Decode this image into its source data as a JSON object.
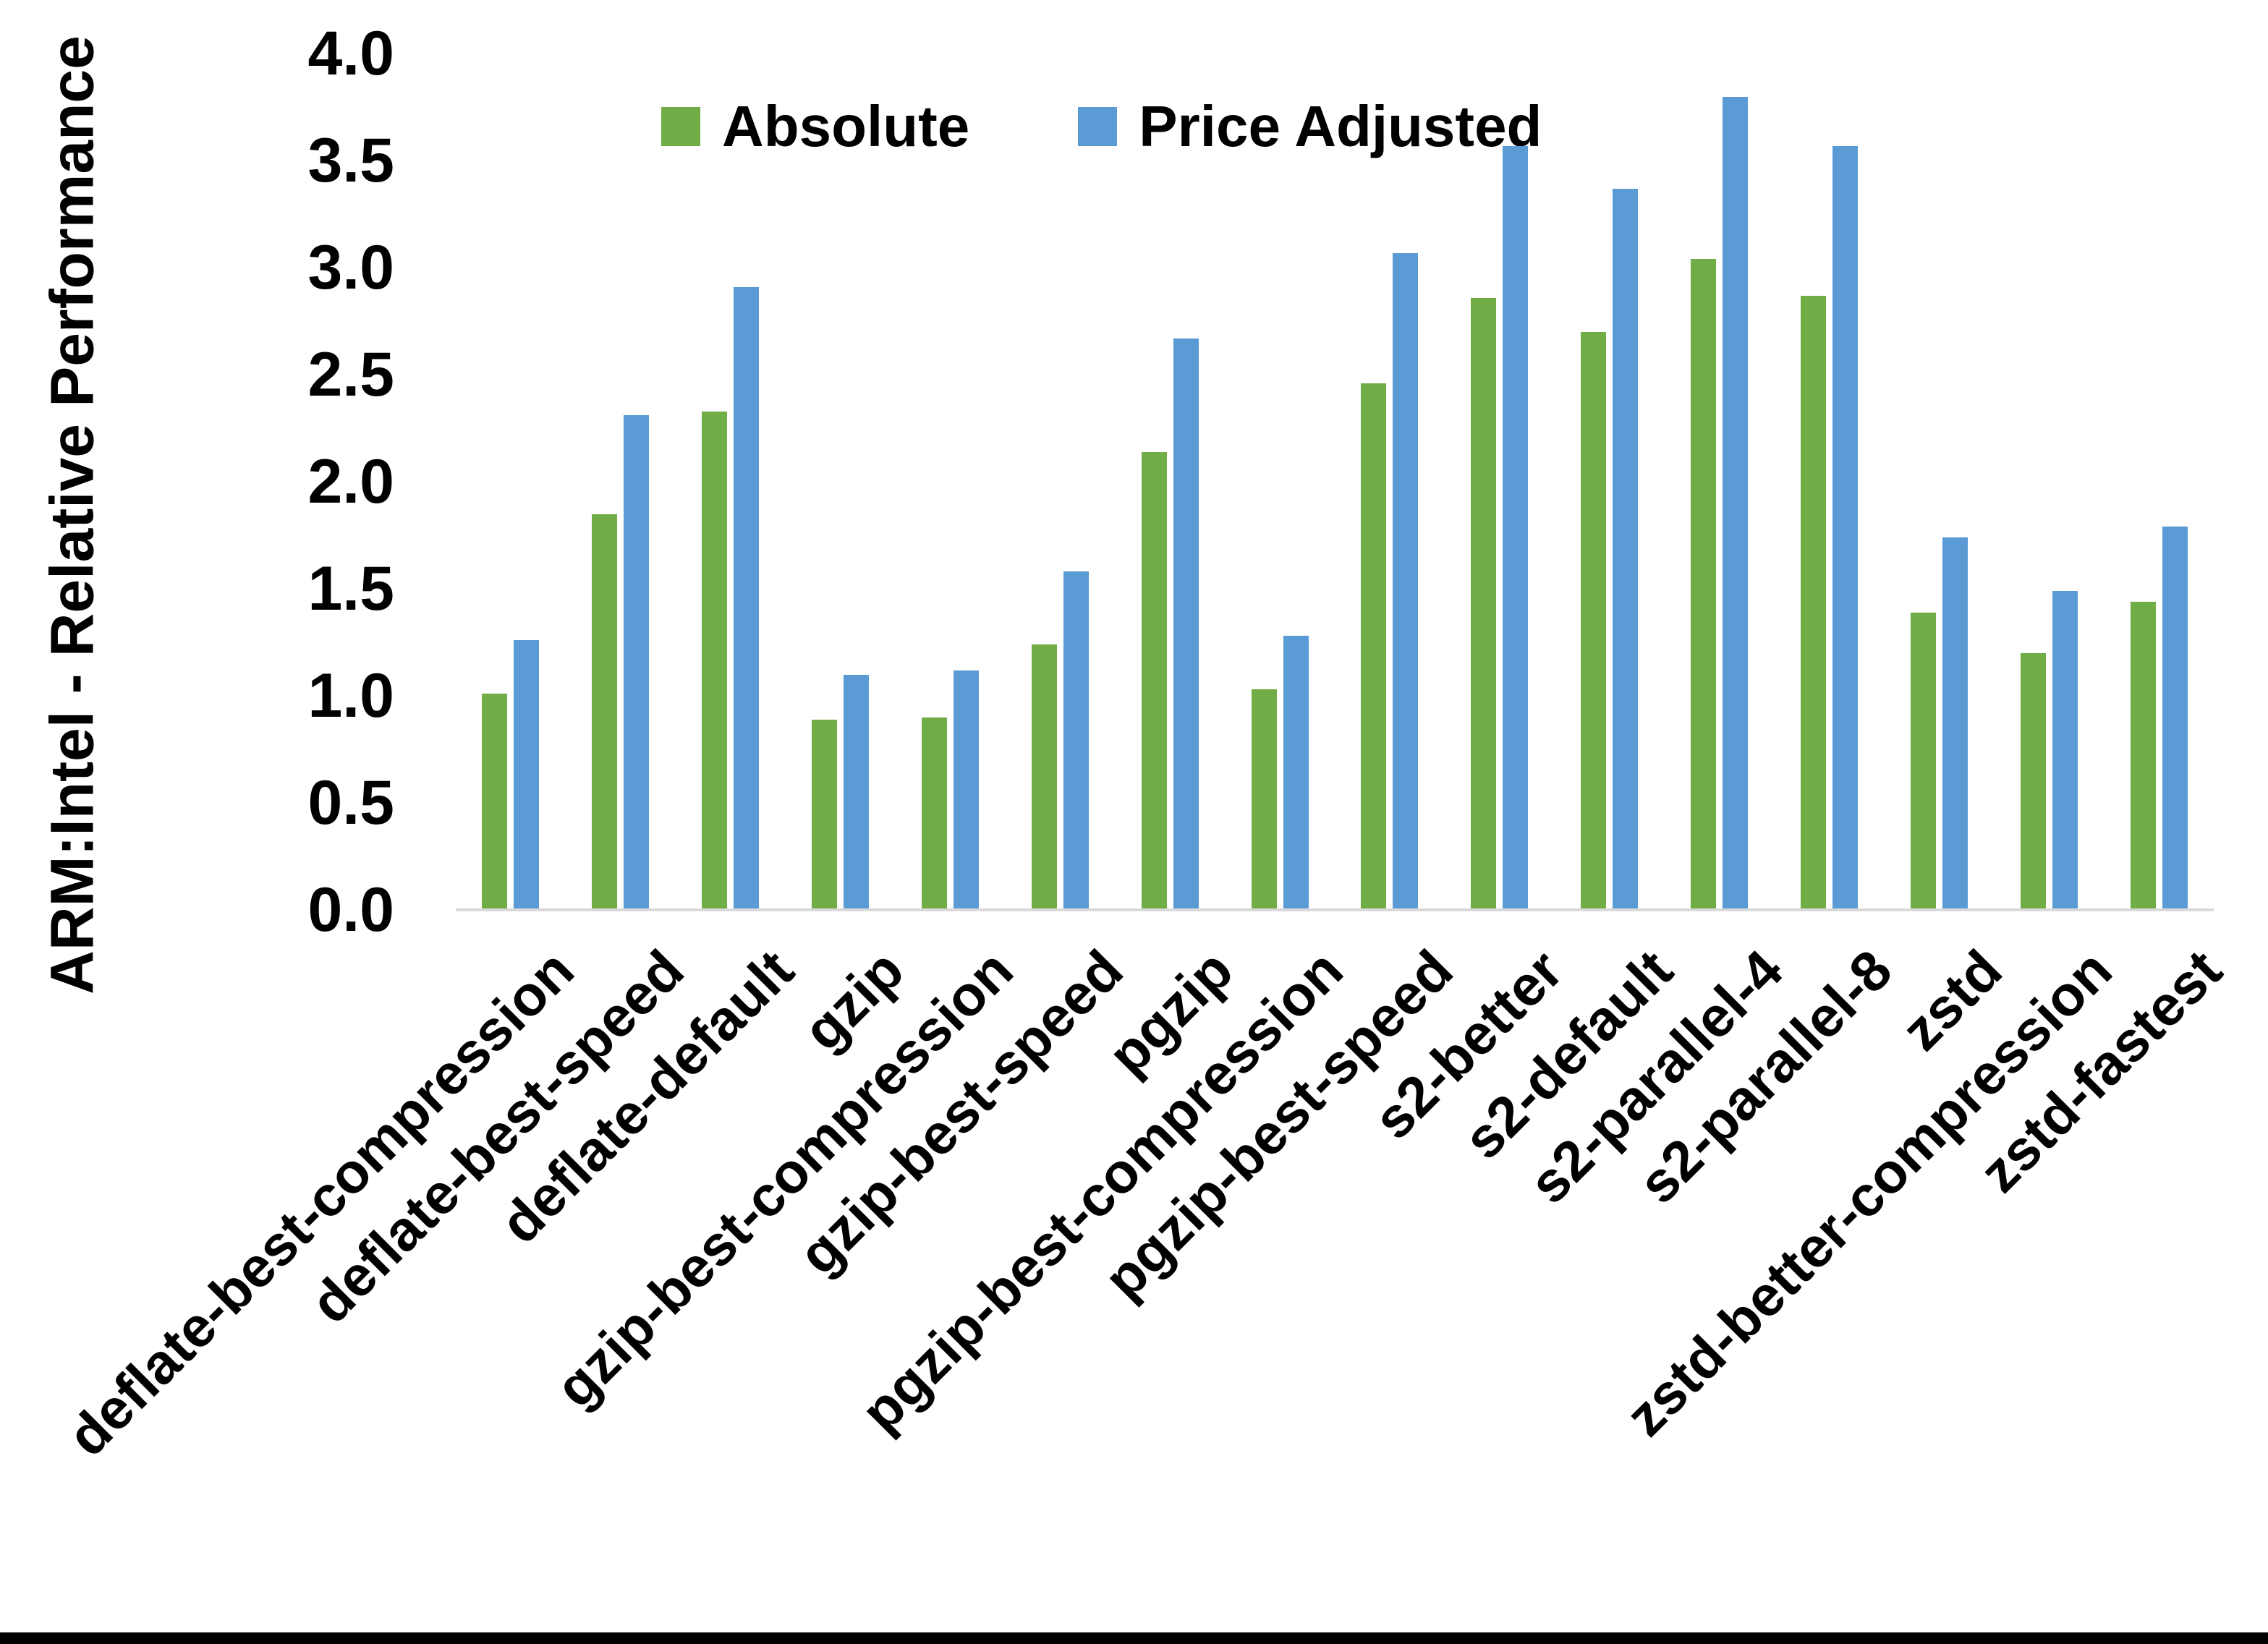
{
  "chart_data": {
    "type": "bar",
    "title": "",
    "xlabel": "",
    "ylabel": "ARM:Intel - Relative Performance",
    "ylim": [
      0.0,
      4.0
    ],
    "ytick_step": 0.5,
    "yticks": [
      "0.0",
      "0.5",
      "1.0",
      "1.5",
      "2.0",
      "2.5",
      "3.0",
      "3.5",
      "4.0"
    ],
    "grid": false,
    "legend_position": "top-center",
    "categories": [
      "deflate-best-compression",
      "deflate-best-speed",
      "deflate-default",
      "gzip",
      "gzip-best-compression",
      "gzip-best-speed",
      "pgzip",
      "pgzip-best-compression",
      "pgzip-best-speed",
      "s2-better",
      "s2-default",
      "s2-parallel-4",
      "s2-parallel-8",
      "zstd",
      "zstd-better-compression",
      "zstd-fastest"
    ],
    "series": [
      {
        "name": "Absolute",
        "color": "#70AD47",
        "values": [
          1.01,
          1.85,
          2.33,
          0.89,
          0.9,
          1.24,
          2.14,
          1.03,
          2.46,
          2.86,
          2.7,
          3.04,
          2.87,
          1.39,
          1.2,
          1.44
        ]
      },
      {
        "name": "Price Adjusted",
        "color": "#5B9BD5",
        "values": [
          1.26,
          2.31,
          2.91,
          1.1,
          1.12,
          1.58,
          2.67,
          1.28,
          3.07,
          3.57,
          3.37,
          3.8,
          3.57,
          1.74,
          1.49,
          1.79
        ]
      }
    ],
    "colors": {
      "axis_line": "#D9D9D9",
      "text": "#000000",
      "background": "#FFFFFF",
      "bottom_border": "#000000"
    }
  }
}
